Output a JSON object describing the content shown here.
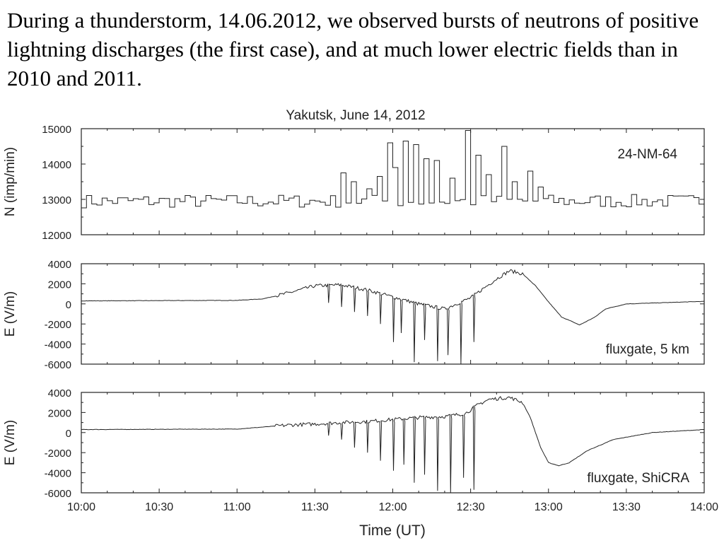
{
  "slide": {
    "caption": "During a thunderstorm, 14.06.2012, we observed bursts of neutrons of positive lightning discharges (the first case), and at much lower electric fields than in 2010 and 2011."
  },
  "chart_data": [
    {
      "type": "line",
      "title": "Yakutsk, June 14, 2012",
      "ylabel": "N (imp/min)",
      "label": "24-NM-64",
      "ylim": [
        12000,
        15000
      ],
      "yticks": [
        "15000",
        "14000",
        "13000",
        "12000"
      ],
      "xlim": [
        "10:00",
        "14:00"
      ],
      "baseline": 12950,
      "bursts": [
        {
          "x": "11:40",
          "y": 13750
        },
        {
          "x": "11:45",
          "y": 13500
        },
        {
          "x": "11:50",
          "y": 13300
        },
        {
          "x": "11:54",
          "y": 13650
        },
        {
          "x": "11:58",
          "y": 14600
        },
        {
          "x": "12:01",
          "y": 13900
        },
        {
          "x": "12:05",
          "y": 14650
        },
        {
          "x": "12:09",
          "y": 14550
        },
        {
          "x": "12:13",
          "y": 14150
        },
        {
          "x": "12:17",
          "y": 14100
        },
        {
          "x": "12:23",
          "y": 13600
        },
        {
          "x": "12:28",
          "y": 14950
        },
        {
          "x": "12:32",
          "y": 14250
        },
        {
          "x": "12:36",
          "y": 13700
        },
        {
          "x": "12:42",
          "y": 14500
        },
        {
          "x": "12:47",
          "y": 13500
        },
        {
          "x": "12:52",
          "y": 13800
        },
        {
          "x": "12:57",
          "y": 13350
        }
      ]
    },
    {
      "type": "line",
      "ylabel": "E (V/m)",
      "label": "fluxgate, 5 km",
      "ylim": [
        -6000,
        4000
      ],
      "yticks": [
        "4000",
        "2000",
        "0",
        "-2000",
        "-4000",
        "-6000"
      ],
      "xlim": [
        "10:00",
        "14:00"
      ],
      "envelope": [
        {
          "x": "10:00",
          "y": 300
        },
        {
          "x": "11:00",
          "y": 350
        },
        {
          "x": "11:10",
          "y": 500
        },
        {
          "x": "11:20",
          "y": 1100
        },
        {
          "x": "11:30",
          "y": 1800
        },
        {
          "x": "11:40",
          "y": 1900
        },
        {
          "x": "11:50",
          "y": 1400
        },
        {
          "x": "12:00",
          "y": 700
        },
        {
          "x": "12:10",
          "y": 0
        },
        {
          "x": "12:20",
          "y": -500
        },
        {
          "x": "12:30",
          "y": 600
        },
        {
          "x": "12:40",
          "y": 2500
        },
        {
          "x": "12:45",
          "y": 3300
        },
        {
          "x": "12:50",
          "y": 3000
        },
        {
          "x": "12:55",
          "y": 1800
        },
        {
          "x": "13:00",
          "y": 200
        },
        {
          "x": "13:05",
          "y": -1300
        },
        {
          "x": "13:12",
          "y": -2100
        },
        {
          "x": "13:18",
          "y": -1300
        },
        {
          "x": "13:22",
          "y": -500
        },
        {
          "x": "13:30",
          "y": 0
        },
        {
          "x": "14:00",
          "y": 250
        }
      ],
      "spikes": [
        {
          "x": "11:35",
          "y": 100
        },
        {
          "x": "11:40",
          "y": -300
        },
        {
          "x": "11:45",
          "y": -800
        },
        {
          "x": "11:50",
          "y": -1200
        },
        {
          "x": "11:55",
          "y": -2000
        },
        {
          "x": "12:00",
          "y": -3800
        },
        {
          "x": "12:03",
          "y": -2900
        },
        {
          "x": "12:08",
          "y": -5800
        },
        {
          "x": "12:12",
          "y": -3600
        },
        {
          "x": "12:17",
          "y": -5700
        },
        {
          "x": "12:21",
          "y": -5100
        },
        {
          "x": "12:26",
          "y": -6000
        },
        {
          "x": "12:31",
          "y": -3800
        }
      ]
    },
    {
      "type": "line",
      "ylabel": "E (V/m)",
      "label": "fluxgate, ShiCRA",
      "xlabel": "Time (UT)",
      "ylim": [
        -6000,
        4000
      ],
      "yticks": [
        "4000",
        "2000",
        "0",
        "-2000",
        "-4000",
        "-6000"
      ],
      "xlim": [
        "10:00",
        "14:00"
      ],
      "xticks": [
        "10:00",
        "10:30",
        "11:00",
        "11:30",
        "12:00",
        "12:30",
        "13:00",
        "13:30",
        "14:00"
      ],
      "envelope": [
        {
          "x": "10:00",
          "y": 300
        },
        {
          "x": "11:00",
          "y": 350
        },
        {
          "x": "11:10",
          "y": 550
        },
        {
          "x": "11:20",
          "y": 750
        },
        {
          "x": "11:30",
          "y": 850
        },
        {
          "x": "11:40",
          "y": 1000
        },
        {
          "x": "11:50",
          "y": 1100
        },
        {
          "x": "12:00",
          "y": 1300
        },
        {
          "x": "12:10",
          "y": 1500
        },
        {
          "x": "12:20",
          "y": 1600
        },
        {
          "x": "12:28",
          "y": 1900
        },
        {
          "x": "12:33",
          "y": 2800
        },
        {
          "x": "12:37",
          "y": 3300
        },
        {
          "x": "12:45",
          "y": 3500
        },
        {
          "x": "12:50",
          "y": 3000
        },
        {
          "x": "12:53",
          "y": 1500
        },
        {
          "x": "12:57",
          "y": -1500
        },
        {
          "x": "13:00",
          "y": -3000
        },
        {
          "x": "13:04",
          "y": -3300
        },
        {
          "x": "13:08",
          "y": -3000
        },
        {
          "x": "13:15",
          "y": -1800
        },
        {
          "x": "13:25",
          "y": -700
        },
        {
          "x": "13:40",
          "y": 0
        },
        {
          "x": "14:00",
          "y": 300
        }
      ],
      "spikes": [
        {
          "x": "11:35",
          "y": -300
        },
        {
          "x": "11:40",
          "y": -700
        },
        {
          "x": "11:45",
          "y": -1500
        },
        {
          "x": "11:50",
          "y": -2000
        },
        {
          "x": "11:55",
          "y": -2800
        },
        {
          "x": "12:00",
          "y": -3800
        },
        {
          "x": "12:04",
          "y": -3200
        },
        {
          "x": "12:08",
          "y": -5000
        },
        {
          "x": "12:12",
          "y": -4200
        },
        {
          "x": "12:17",
          "y": -5800
        },
        {
          "x": "12:22",
          "y": -6000
        },
        {
          "x": "12:27",
          "y": -4500
        },
        {
          "x": "12:31",
          "y": -5700
        }
      ]
    }
  ]
}
